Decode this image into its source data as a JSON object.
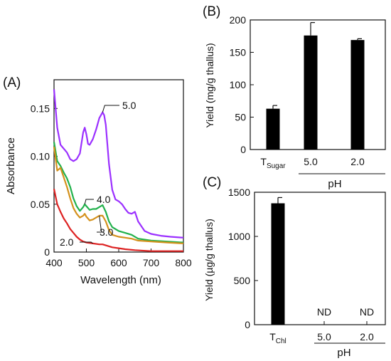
{
  "chart_data": [
    {
      "panel": "(A)",
      "type": "line",
      "xlabel": "Wavelength (nm)",
      "ylabel": "Absorbance",
      "xlim": [
        400,
        800
      ],
      "ylim": [
        0,
        0.18
      ],
      "xticks": [
        400,
        500,
        600,
        700,
        800
      ],
      "yticks": [
        0,
        0.05,
        0.1,
        0.15
      ],
      "ytick_labels": [
        "0",
        "0.05",
        "0.10",
        "0.15"
      ],
      "series": [
        {
          "name": "5.0",
          "color": "#9b30ff",
          "x": [
            400,
            410,
            420,
            430,
            440,
            450,
            460,
            470,
            480,
            490,
            495,
            500,
            505,
            510,
            520,
            530,
            540,
            550,
            555,
            560,
            570,
            580,
            590,
            600,
            610,
            620,
            630,
            640,
            650,
            660,
            680,
            700,
            730,
            760,
            800
          ],
          "y": [
            0.17,
            0.13,
            0.112,
            0.108,
            0.104,
            0.097,
            0.095,
            0.097,
            0.103,
            0.125,
            0.13,
            0.123,
            0.113,
            0.112,
            0.118,
            0.128,
            0.14,
            0.146,
            0.143,
            0.133,
            0.092,
            0.065,
            0.055,
            0.053,
            0.05,
            0.045,
            0.041,
            0.04,
            0.042,
            0.032,
            0.022,
            0.019,
            0.017,
            0.016,
            0.015
          ]
        },
        {
          "name": "4.0",
          "color": "#22b14c",
          "x": [
            400,
            410,
            420,
            430,
            440,
            450,
            460,
            470,
            480,
            490,
            495,
            500,
            510,
            520,
            530,
            540,
            550,
            560,
            570,
            580,
            600,
            620,
            640,
            660,
            700,
            750,
            800
          ],
          "y": [
            0.115,
            0.095,
            0.09,
            0.083,
            0.077,
            0.068,
            0.056,
            0.048,
            0.043,
            0.047,
            0.05,
            0.048,
            0.044,
            0.045,
            0.045,
            0.047,
            0.049,
            0.042,
            0.032,
            0.026,
            0.022,
            0.02,
            0.018,
            0.014,
            0.012,
            0.011,
            0.01
          ]
        },
        {
          "name": "3.0",
          "color": "#d4911c",
          "x": [
            400,
            410,
            420,
            430,
            440,
            450,
            460,
            470,
            480,
            490,
            495,
            500,
            510,
            520,
            530,
            540,
            550,
            560,
            570,
            580,
            600,
            620,
            640,
            660,
            700,
            750,
            800
          ],
          "y": [
            0.11,
            0.085,
            0.088,
            0.078,
            0.068,
            0.056,
            0.046,
            0.04,
            0.036,
            0.038,
            0.04,
            0.037,
            0.033,
            0.034,
            0.036,
            0.038,
            0.038,
            0.032,
            0.023,
            0.018,
            0.016,
            0.015,
            0.014,
            0.012,
            0.011,
            0.01,
            0.009
          ]
        },
        {
          "name": "2.0",
          "color": "#dd2222",
          "x": [
            400,
            410,
            420,
            430,
            440,
            450,
            460,
            470,
            480,
            490,
            500,
            520,
            540,
            550,
            560,
            580,
            600,
            620,
            650,
            700,
            750,
            800
          ],
          "y": [
            0.066,
            0.05,
            0.042,
            0.035,
            0.03,
            0.024,
            0.02,
            0.016,
            0.013,
            0.011,
            0.01,
            0.009,
            0.008,
            0.008,
            0.007,
            0.005,
            0.004,
            0.003,
            0.002,
            0.001,
            0.001,
            0.001
          ]
        }
      ]
    },
    {
      "panel": "(B)",
      "type": "bar",
      "ylabel": "Yield (mg/g thallus)",
      "ylim": [
        0,
        200
      ],
      "yticks": [
        0,
        50,
        100,
        150,
        200
      ],
      "categories": [
        "T",
        "5.0",
        "2.0"
      ],
      "category_subscripts": [
        "Sugar",
        "",
        ""
      ],
      "values": [
        63,
        176,
        169
      ],
      "errors": [
        5,
        20,
        2
      ],
      "group_label": "pH",
      "bar_color": "#000000"
    },
    {
      "panel": "(C)",
      "type": "bar",
      "ylabel": "Yield (µg/g thallus)",
      "ylim": [
        0,
        1500
      ],
      "yticks": [
        0,
        500,
        1000,
        1500
      ],
      "categories": [
        "T",
        "5.0",
        "2.0"
      ],
      "category_subscripts": [
        "Chl",
        "",
        ""
      ],
      "values": [
        1375,
        null,
        null
      ],
      "errors": [
        65,
        null,
        null
      ],
      "annotations": [
        "",
        "ND",
        "ND"
      ],
      "group_label": "pH",
      "bar_color": "#000000"
    }
  ]
}
